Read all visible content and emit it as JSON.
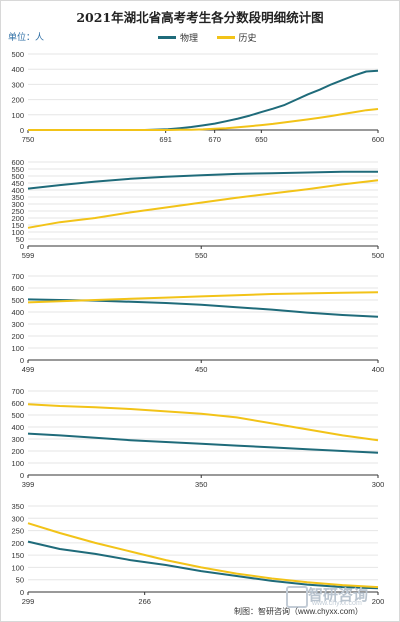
{
  "title": "2021年湖北省高考考生各分数段明细统计图",
  "unit": "单位：人",
  "footer": "制图：智研咨询（www.chyxx.com）",
  "watermark": {
    "brand": "智研咨询",
    "site": "www.chyxx.com"
  },
  "colors": {
    "physics": "#1f6b7a",
    "history": "#f2c318",
    "grid": "#e6e6e6",
    "axis": "#333333"
  },
  "chart_data": [
    {
      "type": "line",
      "xlabel": "",
      "ylabel": "",
      "x_range": [
        750,
        600
      ],
      "ylim": [
        0,
        500
      ],
      "yticks": [
        0,
        100,
        200,
        300,
        400,
        500
      ],
      "xtick_labels": [
        {
          "x": 750,
          "label": "750"
        },
        {
          "x": 691,
          "label": "691"
        },
        {
          "x": 670,
          "label": "670"
        },
        {
          "x": 650,
          "label": "650"
        },
        {
          "x": 600,
          "label": "600"
        }
      ],
      "series": [
        {
          "name": "物理",
          "x": [
            750,
            700,
            690,
            685,
            680,
            675,
            670,
            665,
            660,
            655,
            650,
            645,
            640,
            635,
            630,
            625,
            620,
            615,
            610,
            605,
            600
          ],
          "values": [
            0,
            0,
            5,
            12,
            20,
            30,
            42,
            58,
            75,
            95,
            118,
            140,
            165,
            200,
            235,
            265,
            300,
            330,
            360,
            385,
            390
          ]
        },
        {
          "name": "历史",
          "x": [
            750,
            690,
            685,
            680,
            675,
            670,
            665,
            660,
            655,
            650,
            645,
            640,
            635,
            630,
            625,
            620,
            615,
            610,
            605,
            600
          ],
          "values": [
            0,
            0,
            1,
            2,
            4,
            8,
            12,
            18,
            25,
            32,
            40,
            50,
            60,
            70,
            80,
            92,
            105,
            118,
            130,
            138
          ]
        }
      ]
    },
    {
      "type": "line",
      "xlabel": "",
      "ylabel": "",
      "x_range": [
        599,
        500
      ],
      "ylim": [
        0,
        600
      ],
      "yticks": [
        0,
        50,
        100,
        150,
        200,
        250,
        300,
        350,
        400,
        450,
        500,
        550,
        600
      ],
      "xtick_labels": [
        {
          "x": 599,
          "label": "599"
        },
        {
          "x": 550,
          "label": "550"
        },
        {
          "x": 500,
          "label": "500"
        }
      ],
      "series": [
        {
          "name": "物理",
          "x": [
            599,
            590,
            580,
            570,
            560,
            550,
            540,
            530,
            520,
            510,
            500
          ],
          "values": [
            410,
            435,
            460,
            480,
            495,
            505,
            515,
            520,
            525,
            530,
            530
          ]
        },
        {
          "name": "历史",
          "x": [
            599,
            590,
            580,
            570,
            560,
            550,
            540,
            530,
            520,
            510,
            500
          ],
          "values": [
            130,
            170,
            200,
            240,
            275,
            310,
            345,
            375,
            405,
            440,
            470
          ]
        }
      ]
    },
    {
      "type": "line",
      "xlabel": "",
      "ylabel": "",
      "x_range": [
        499,
        400
      ],
      "ylim": [
        0,
        700
      ],
      "yticks": [
        0,
        100,
        200,
        300,
        400,
        500,
        600,
        700
      ],
      "xtick_labels": [
        {
          "x": 499,
          "label": "499"
        },
        {
          "x": 450,
          "label": "450"
        },
        {
          "x": 400,
          "label": "400"
        }
      ],
      "series": [
        {
          "name": "物理",
          "x": [
            499,
            490,
            480,
            470,
            460,
            450,
            440,
            430,
            420,
            410,
            400
          ],
          "values": [
            505,
            500,
            495,
            485,
            475,
            460,
            440,
            420,
            395,
            375,
            360
          ]
        },
        {
          "name": "历史",
          "x": [
            499,
            490,
            480,
            470,
            460,
            450,
            440,
            430,
            420,
            410,
            400
          ],
          "values": [
            480,
            490,
            500,
            510,
            520,
            530,
            540,
            550,
            555,
            560,
            565
          ]
        }
      ]
    },
    {
      "type": "line",
      "xlabel": "",
      "ylabel": "",
      "x_range": [
        399,
        300
      ],
      "ylim": [
        0,
        700
      ],
      "yticks": [
        0,
        100,
        200,
        300,
        400,
        500,
        600,
        700
      ],
      "xtick_labels": [
        {
          "x": 399,
          "label": "399"
        },
        {
          "x": 350,
          "label": "350"
        },
        {
          "x": 300,
          "label": "300"
        }
      ],
      "series": [
        {
          "name": "物理",
          "x": [
            399,
            390,
            380,
            370,
            360,
            350,
            340,
            330,
            320,
            310,
            300
          ],
          "values": [
            345,
            330,
            310,
            290,
            275,
            260,
            245,
            230,
            215,
            200,
            185
          ]
        },
        {
          "name": "历史",
          "x": [
            399,
            390,
            380,
            370,
            360,
            350,
            340,
            330,
            320,
            310,
            300
          ],
          "values": [
            590,
            575,
            565,
            550,
            530,
            510,
            480,
            430,
            380,
            330,
            290
          ]
        }
      ]
    },
    {
      "type": "line",
      "xlabel": "",
      "ylabel": "",
      "x_range": [
        299,
        200
      ],
      "ylim": [
        0,
        350
      ],
      "yticks": [
        0,
        50,
        100,
        150,
        200,
        250,
        300,
        350
      ],
      "xtick_labels": [
        {
          "x": 299,
          "label": "299"
        },
        {
          "x": 266,
          "label": "266"
        },
        {
          "x": 200,
          "label": "200"
        }
      ],
      "series": [
        {
          "name": "物理",
          "x": [
            299,
            290,
            280,
            270,
            260,
            250,
            240,
            230,
            220,
            210,
            200
          ],
          "values": [
            205,
            175,
            155,
            130,
            110,
            85,
            65,
            45,
            30,
            20,
            15
          ]
        },
        {
          "name": "历史",
          "x": [
            299,
            290,
            280,
            270,
            260,
            250,
            240,
            230,
            220,
            210,
            200
          ],
          "values": [
            280,
            240,
            200,
            165,
            130,
            100,
            75,
            55,
            40,
            28,
            20
          ]
        }
      ]
    }
  ]
}
